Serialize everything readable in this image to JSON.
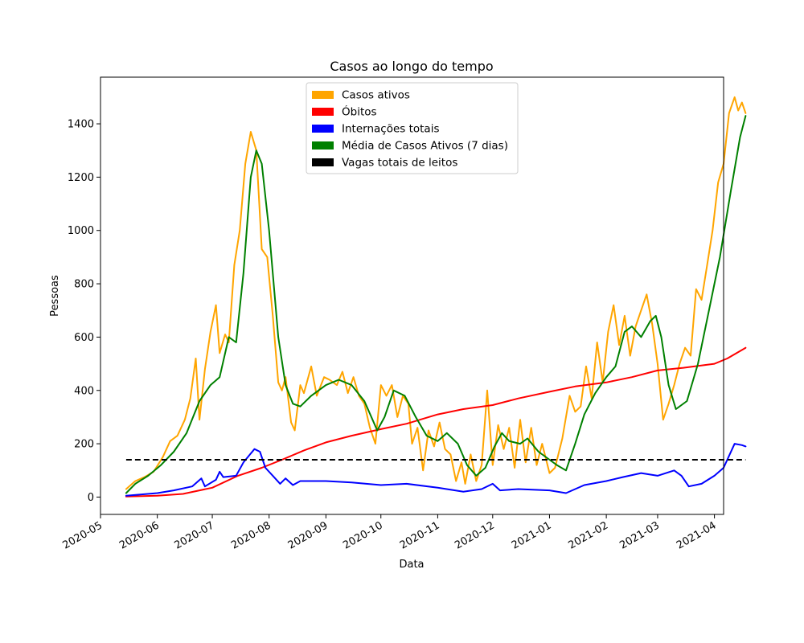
{
  "chart_data": {
    "type": "line",
    "title": "Casos ao longo do tempo",
    "xlabel": "Data",
    "ylabel": "Pessoas",
    "x_ticks": [
      "2020-05",
      "2020-06",
      "2020-07",
      "2020-08",
      "2020-09",
      "2020-10",
      "2020-11",
      "2020-12",
      "2021-01",
      "2021-02",
      "2021-03",
      "2021-04"
    ],
    "y_ticks": [
      0,
      200,
      400,
      600,
      800,
      1000,
      1200,
      1400
    ],
    "ylim": [
      -65,
      1575
    ],
    "xlim": [
      "2020-05-01",
      "2021-04-06"
    ],
    "legend_position": "upper center",
    "grid": false,
    "series": [
      {
        "name": "Casos ativos",
        "color": "#FFA500",
        "style": "solid",
        "points": [
          [
            "2020-05-15",
            30
          ],
          [
            "2020-05-20",
            60
          ],
          [
            "2020-05-25",
            75
          ],
          [
            "2020-05-30",
            95
          ],
          [
            "2020-06-04",
            150
          ],
          [
            "2020-06-08",
            210
          ],
          [
            "2020-06-12",
            230
          ],
          [
            "2020-06-16",
            290
          ],
          [
            "2020-06-19",
            370
          ],
          [
            "2020-06-22",
            520
          ],
          [
            "2020-06-24",
            290
          ],
          [
            "2020-06-27",
            480
          ],
          [
            "2020-06-30",
            620
          ],
          [
            "2020-07-03",
            720
          ],
          [
            "2020-07-05",
            540
          ],
          [
            "2020-07-08",
            610
          ],
          [
            "2020-07-10",
            580
          ],
          [
            "2020-07-13",
            870
          ],
          [
            "2020-07-16",
            1000
          ],
          [
            "2020-07-19",
            1250
          ],
          [
            "2020-07-22",
            1370
          ],
          [
            "2020-07-25",
            1300
          ],
          [
            "2020-07-28",
            930
          ],
          [
            "2020-07-31",
            900
          ],
          [
            "2020-08-03",
            680
          ],
          [
            "2020-08-06",
            430
          ],
          [
            "2020-08-08",
            400
          ],
          [
            "2020-08-10",
            450
          ],
          [
            "2020-08-13",
            280
          ],
          [
            "2020-08-15",
            250
          ],
          [
            "2020-08-18",
            420
          ],
          [
            "2020-08-20",
            390
          ],
          [
            "2020-08-24",
            490
          ],
          [
            "2020-08-27",
            380
          ],
          [
            "2020-08-31",
            450
          ],
          [
            "2020-09-03",
            440
          ],
          [
            "2020-09-07",
            420
          ],
          [
            "2020-09-10",
            470
          ],
          [
            "2020-09-13",
            390
          ],
          [
            "2020-09-16",
            450
          ],
          [
            "2020-09-19",
            380
          ],
          [
            "2020-09-22",
            350
          ],
          [
            "2020-09-25",
            260
          ],
          [
            "2020-09-28",
            200
          ],
          [
            "2020-10-01",
            420
          ],
          [
            "2020-10-04",
            380
          ],
          [
            "2020-10-07",
            420
          ],
          [
            "2020-10-10",
            300
          ],
          [
            "2020-10-13",
            380
          ],
          [
            "2020-10-16",
            350
          ],
          [
            "2020-10-18",
            200
          ],
          [
            "2020-10-21",
            260
          ],
          [
            "2020-10-24",
            100
          ],
          [
            "2020-10-27",
            250
          ],
          [
            "2020-10-30",
            190
          ],
          [
            "2020-11-02",
            280
          ],
          [
            "2020-11-05",
            180
          ],
          [
            "2020-11-08",
            160
          ],
          [
            "2020-11-11",
            60
          ],
          [
            "2020-11-14",
            130
          ],
          [
            "2020-11-16",
            50
          ],
          [
            "2020-11-19",
            160
          ],
          [
            "2020-11-22",
            60
          ],
          [
            "2020-11-25",
            120
          ],
          [
            "2020-11-28",
            400
          ],
          [
            "2020-12-01",
            120
          ],
          [
            "2020-12-04",
            270
          ],
          [
            "2020-12-07",
            180
          ],
          [
            "2020-12-10",
            260
          ],
          [
            "2020-12-13",
            110
          ],
          [
            "2020-12-16",
            290
          ],
          [
            "2020-12-19",
            130
          ],
          [
            "2020-12-22",
            260
          ],
          [
            "2020-12-25",
            120
          ],
          [
            "2020-12-28",
            200
          ],
          [
            "2021-01-01",
            90
          ],
          [
            "2021-01-04",
            110
          ],
          [
            "2021-01-08",
            220
          ],
          [
            "2021-01-12",
            380
          ],
          [
            "2021-01-15",
            320
          ],
          [
            "2021-01-18",
            340
          ],
          [
            "2021-01-21",
            490
          ],
          [
            "2021-01-24",
            370
          ],
          [
            "2021-01-27",
            580
          ],
          [
            "2021-01-30",
            430
          ],
          [
            "2021-02-02",
            620
          ],
          [
            "2021-02-05",
            720
          ],
          [
            "2021-02-08",
            570
          ],
          [
            "2021-02-11",
            680
          ],
          [
            "2021-02-14",
            530
          ],
          [
            "2021-02-17",
            640
          ],
          [
            "2021-02-20",
            700
          ],
          [
            "2021-02-23",
            760
          ],
          [
            "2021-02-26",
            650
          ],
          [
            "2021-03-01",
            500
          ],
          [
            "2021-03-04",
            290
          ],
          [
            "2021-03-07",
            350
          ],
          [
            "2021-03-10",
            420
          ],
          [
            "2021-03-13",
            500
          ],
          [
            "2021-03-16",
            560
          ],
          [
            "2021-03-19",
            530
          ],
          [
            "2021-03-22",
            780
          ],
          [
            "2021-03-25",
            740
          ],
          [
            "2021-03-28",
            870
          ],
          [
            "2021-03-31",
            1000
          ],
          [
            "2021-04-03",
            1180
          ],
          [
            "2021-04-06",
            1250
          ],
          [
            "2021-04-09",
            1440
          ],
          [
            "2021-04-12",
            1500
          ],
          [
            "2021-04-14",
            1450
          ],
          [
            "2021-04-16",
            1480
          ],
          [
            "2021-04-18",
            1440
          ]
        ]
      },
      {
        "name": "Óbitos",
        "color": "#FF0000",
        "style": "solid",
        "points": [
          [
            "2020-05-15",
            2
          ],
          [
            "2020-06-01",
            5
          ],
          [
            "2020-06-15",
            12
          ],
          [
            "2020-07-01",
            35
          ],
          [
            "2020-07-15",
            80
          ],
          [
            "2020-07-28",
            110
          ],
          [
            "2020-08-08",
            140
          ],
          [
            "2020-08-20",
            175
          ],
          [
            "2020-09-01",
            205
          ],
          [
            "2020-09-15",
            230
          ],
          [
            "2020-10-01",
            255
          ],
          [
            "2020-10-15",
            275
          ],
          [
            "2020-11-01",
            310
          ],
          [
            "2020-11-15",
            330
          ],
          [
            "2020-12-01",
            345
          ],
          [
            "2020-12-15",
            370
          ],
          [
            "2021-01-01",
            395
          ],
          [
            "2021-01-15",
            415
          ],
          [
            "2021-02-01",
            430
          ],
          [
            "2021-02-15",
            450
          ],
          [
            "2021-03-01",
            475
          ],
          [
            "2021-03-15",
            485
          ],
          [
            "2021-04-01",
            500
          ],
          [
            "2021-04-08",
            520
          ],
          [
            "2021-04-18",
            560
          ]
        ]
      },
      {
        "name": "Internações totais",
        "color": "#0000FF",
        "style": "solid",
        "points": [
          [
            "2020-05-15",
            5
          ],
          [
            "2020-06-01",
            15
          ],
          [
            "2020-06-10",
            25
          ],
          [
            "2020-06-20",
            40
          ],
          [
            "2020-06-25",
            70
          ],
          [
            "2020-06-27",
            40
          ],
          [
            "2020-07-03",
            65
          ],
          [
            "2020-07-05",
            95
          ],
          [
            "2020-07-07",
            75
          ],
          [
            "2020-07-14",
            80
          ],
          [
            "2020-07-18",
            130
          ],
          [
            "2020-07-21",
            155
          ],
          [
            "2020-07-24",
            180
          ],
          [
            "2020-07-27",
            170
          ],
          [
            "2020-07-30",
            110
          ],
          [
            "2020-08-03",
            80
          ],
          [
            "2020-08-07",
            50
          ],
          [
            "2020-08-10",
            70
          ],
          [
            "2020-08-14",
            45
          ],
          [
            "2020-08-18",
            60
          ],
          [
            "2020-09-01",
            60
          ],
          [
            "2020-09-15",
            55
          ],
          [
            "2020-10-01",
            45
          ],
          [
            "2020-10-15",
            50
          ],
          [
            "2020-11-01",
            35
          ],
          [
            "2020-11-15",
            20
          ],
          [
            "2020-11-25",
            30
          ],
          [
            "2020-12-01",
            50
          ],
          [
            "2020-12-05",
            25
          ],
          [
            "2020-12-15",
            30
          ],
          [
            "2021-01-01",
            25
          ],
          [
            "2021-01-10",
            15
          ],
          [
            "2021-01-20",
            45
          ],
          [
            "2021-02-01",
            60
          ],
          [
            "2021-02-10",
            75
          ],
          [
            "2021-02-20",
            90
          ],
          [
            "2021-03-01",
            80
          ],
          [
            "2021-03-10",
            100
          ],
          [
            "2021-03-14",
            80
          ],
          [
            "2021-03-18",
            40
          ],
          [
            "2021-03-25",
            50
          ],
          [
            "2021-04-01",
            80
          ],
          [
            "2021-04-06",
            110
          ],
          [
            "2021-04-12",
            200
          ],
          [
            "2021-04-16",
            195
          ],
          [
            "2021-04-18",
            190
          ]
        ]
      },
      {
        "name": "Média de Casos Ativos (7 dias)",
        "color": "#008000",
        "style": "solid",
        "points": [
          [
            "2020-05-15",
            15
          ],
          [
            "2020-05-20",
            50
          ],
          [
            "2020-05-27",
            80
          ],
          [
            "2020-06-03",
            120
          ],
          [
            "2020-06-10",
            170
          ],
          [
            "2020-06-17",
            240
          ],
          [
            "2020-06-24",
            360
          ],
          [
            "2020-06-30",
            420
          ],
          [
            "2020-07-05",
            450
          ],
          [
            "2020-07-10",
            600
          ],
          [
            "2020-07-14",
            580
          ],
          [
            "2020-07-18",
            840
          ],
          [
            "2020-07-22",
            1200
          ],
          [
            "2020-07-25",
            1300
          ],
          [
            "2020-07-28",
            1250
          ],
          [
            "2020-08-01",
            1000
          ],
          [
            "2020-08-06",
            600
          ],
          [
            "2020-08-10",
            420
          ],
          [
            "2020-08-14",
            350
          ],
          [
            "2020-08-18",
            340
          ],
          [
            "2020-08-24",
            380
          ],
          [
            "2020-09-01",
            420
          ],
          [
            "2020-09-08",
            440
          ],
          [
            "2020-09-15",
            420
          ],
          [
            "2020-09-22",
            360
          ],
          [
            "2020-09-29",
            250
          ],
          [
            "2020-10-03",
            300
          ],
          [
            "2020-10-08",
            400
          ],
          [
            "2020-10-14",
            380
          ],
          [
            "2020-10-20",
            300
          ],
          [
            "2020-10-26",
            230
          ],
          [
            "2020-11-01",
            210
          ],
          [
            "2020-11-06",
            240
          ],
          [
            "2020-11-12",
            200
          ],
          [
            "2020-11-17",
            120
          ],
          [
            "2020-11-22",
            80
          ],
          [
            "2020-11-27",
            110
          ],
          [
            "2020-12-02",
            190
          ],
          [
            "2020-12-06",
            240
          ],
          [
            "2020-12-10",
            210
          ],
          [
            "2020-12-16",
            200
          ],
          [
            "2020-12-20",
            220
          ],
          [
            "2020-12-26",
            170
          ],
          [
            "2021-01-01",
            140
          ],
          [
            "2021-01-05",
            120
          ],
          [
            "2021-01-10",
            100
          ],
          [
            "2021-01-15",
            200
          ],
          [
            "2021-01-20",
            310
          ],
          [
            "2021-01-26",
            390
          ],
          [
            "2021-02-01",
            450
          ],
          [
            "2021-02-06",
            490
          ],
          [
            "2021-02-11",
            620
          ],
          [
            "2021-02-15",
            640
          ],
          [
            "2021-02-20",
            600
          ],
          [
            "2021-02-25",
            660
          ],
          [
            "2021-02-28",
            680
          ],
          [
            "2021-03-03",
            600
          ],
          [
            "2021-03-07",
            420
          ],
          [
            "2021-03-11",
            330
          ],
          [
            "2021-03-17",
            360
          ],
          [
            "2021-03-23",
            500
          ],
          [
            "2021-03-29",
            700
          ],
          [
            "2021-04-04",
            900
          ],
          [
            "2021-04-10",
            1150
          ],
          [
            "2021-04-15",
            1350
          ],
          [
            "2021-04-18",
            1430
          ]
        ]
      },
      {
        "name": "Vagas totais de leitos",
        "color": "#000000",
        "style": "dashed",
        "points": [
          [
            "2020-05-15",
            140
          ],
          [
            "2021-04-18",
            140
          ]
        ]
      }
    ]
  }
}
